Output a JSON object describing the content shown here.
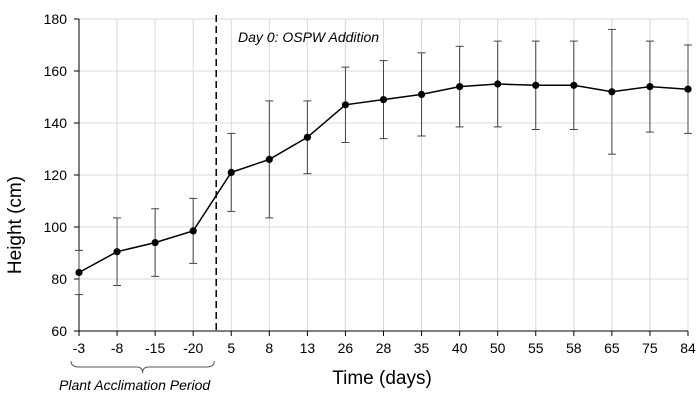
{
  "chart_data": {
    "type": "line",
    "title": "",
    "xlabel": "Time (days)",
    "ylabel": "Height (cm)",
    "ylim": [
      60,
      180
    ],
    "yticks": [
      60,
      80,
      100,
      120,
      140,
      160,
      180
    ],
    "categories": [
      "-3",
      "-8",
      "-15",
      "-20",
      "5",
      "8",
      "13",
      "26",
      "28",
      "35",
      "40",
      "50",
      "55",
      "58",
      "65",
      "75",
      "84"
    ],
    "series": [
      {
        "name": "Height",
        "values": [
          82.5,
          90.5,
          94,
          98.5,
          121,
          126,
          134.5,
          147,
          149,
          151,
          154,
          155,
          154.5,
          154.5,
          152,
          154,
          153
        ],
        "error": [
          8.5,
          13,
          13,
          12.5,
          15,
          22.5,
          14,
          14.5,
          15,
          16,
          15.5,
          16.5,
          17,
          17,
          24,
          17.5,
          17
        ]
      }
    ],
    "grid": true,
    "annotations": {
      "day0_line_label": "Day 0: OSPW Addition",
      "bracket_label": "Plant Acclimation Period"
    }
  }
}
